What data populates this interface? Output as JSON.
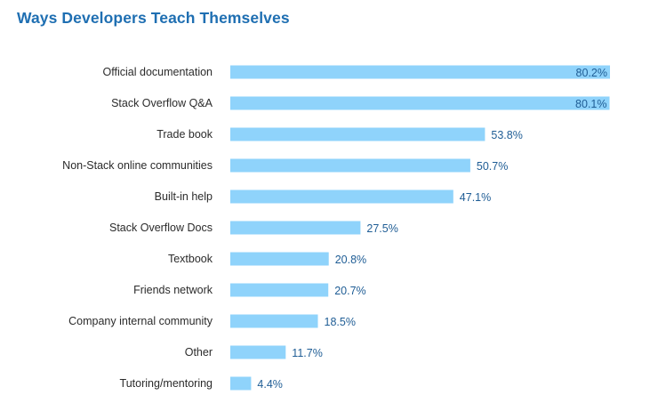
{
  "chart_data": {
    "type": "bar",
    "orientation": "horizontal",
    "title": "Ways Developers Teach Themselves",
    "categories": [
      "Official documentation",
      "Stack Overflow Q&A",
      "Trade book",
      "Non-Stack online communities",
      "Built-in help",
      "Stack Overflow Docs",
      "Textbook",
      "Friends network",
      "Company internal community",
      "Other",
      "Tutoring/mentoring"
    ],
    "values": [
      80.2,
      80.1,
      53.8,
      50.7,
      47.1,
      27.5,
      20.8,
      20.7,
      18.5,
      11.7,
      4.4
    ],
    "data_labels": [
      "80.2%",
      "80.1%",
      "53.8%",
      "50.7%",
      "47.1%",
      "27.5%",
      "20.8%",
      "20.7%",
      "18.5%",
      "11.7%",
      "4.4%"
    ],
    "xlim": [
      0,
      80.2
    ],
    "grid": false,
    "legend": "none",
    "colors": {
      "bar": "#8fd3fb",
      "title": "#1f6fb2",
      "value_label": "#1f5d95",
      "category_label": "#2b2b2b"
    }
  }
}
